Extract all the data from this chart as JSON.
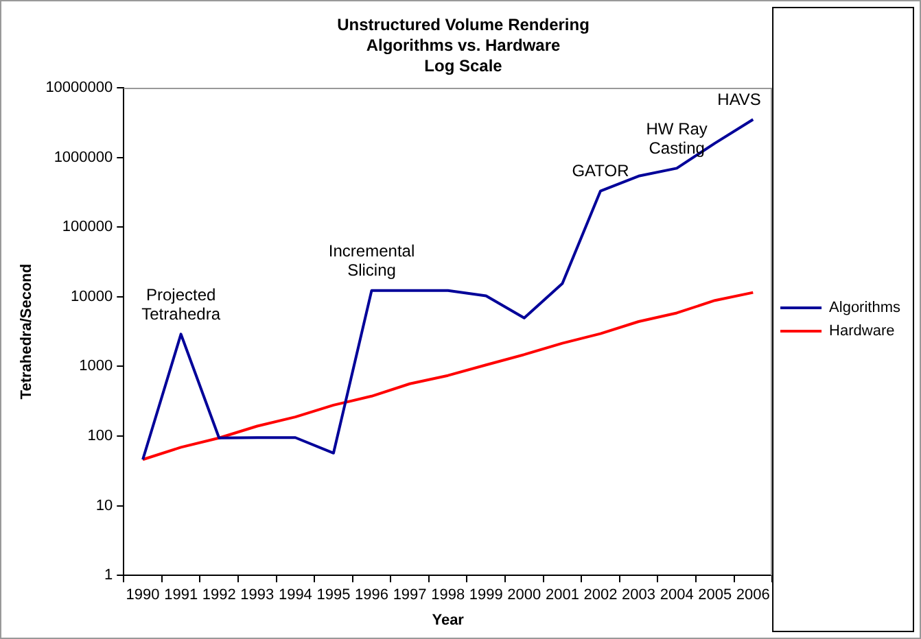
{
  "chart_data": {
    "type": "line",
    "title": "Unstructured Volume Rendering\nAlgorithms vs. Hardware\nLog Scale",
    "xlabel": "Year",
    "ylabel": "Tetrahedra/Second",
    "categories": [
      "1990",
      "1991",
      "1992",
      "1993",
      "1994",
      "1995",
      "1996",
      "1997",
      "1998",
      "1999",
      "2000",
      "2001",
      "2002",
      "2003",
      "2004",
      "2005",
      "2006"
    ],
    "series": [
      {
        "name": "Algorithms",
        "color": "#000099",
        "values": [
          46,
          2900,
          94,
          95,
          95,
          57,
          12300,
          12300,
          12300,
          10300,
          4950,
          15500,
          330000,
          540000,
          700000,
          1600000,
          3500000
        ]
      },
      {
        "name": "Hardware",
        "color": "#ff0000",
        "values": [
          46,
          69,
          94,
          139,
          188,
          278,
          374,
          563,
          740,
          1050,
          1480,
          2150,
          2950,
          4400,
          5850,
          8850,
          11500
        ]
      }
    ],
    "log": "y",
    "ylim": [
      1,
      10000000
    ],
    "yticks": [
      1,
      10,
      100,
      1000,
      10000,
      100000,
      1000000,
      10000000
    ],
    "grid": false,
    "legend": "right",
    "marker": "none",
    "line_style": "solid",
    "annotations": [
      {
        "text": "Projected\nTetrahedra",
        "x": "1991",
        "y": 2900
      },
      {
        "text": "Incremental\nSlicing",
        "x": "1996",
        "y": 12300
      },
      {
        "text": "GATOR",
        "x": "2002",
        "y": 330000
      },
      {
        "text": "HW Ray\nCasting",
        "x": "2004",
        "y": 700000
      },
      {
        "text": "HAVS",
        "x": "2006",
        "y": 3500000
      }
    ]
  }
}
